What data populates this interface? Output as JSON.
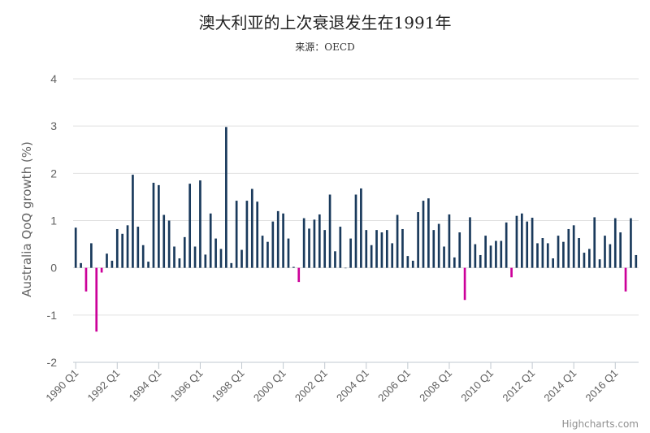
{
  "chart_data": {
    "type": "bar",
    "title": "澳大利亚的上次衰退发生在1991年",
    "subtitle": "来源：OECD",
    "ylabel": "Australia QoQ growth (%)",
    "xlabel": "",
    "ylim": [
      -2,
      4
    ],
    "yticks": [
      -2,
      -1,
      0,
      1,
      2,
      3,
      4
    ],
    "xtick_labels": [
      "1990 Q1",
      "1992 Q1",
      "1994 Q1",
      "1996 Q1",
      "1998 Q1",
      "2000 Q1",
      "2002 Q1",
      "2004 Q1",
      "2006 Q1",
      "2008 Q1",
      "2010 Q1",
      "2012 Q1",
      "2014 Q1",
      "2016 Q1"
    ],
    "start_year": 1990,
    "positive_color": "#1a3a5c",
    "negative_color": "#cc0099",
    "grid": true,
    "values": [
      0.85,
      0.1,
      -0.5,
      0.52,
      -1.35,
      -0.1,
      0.3,
      0.15,
      0.82,
      0.72,
      0.9,
      1.97,
      0.87,
      0.48,
      0.13,
      1.8,
      1.75,
      1.12,
      1.0,
      0.45,
      0.2,
      0.65,
      1.78,
      0.45,
      1.85,
      0.28,
      1.15,
      0.62,
      0.4,
      2.98,
      0.1,
      1.42,
      0.38,
      1.42,
      1.67,
      1.4,
      0.68,
      0.55,
      0.98,
      1.2,
      1.15,
      0.62,
      0.02,
      -0.3,
      1.05,
      0.83,
      1.02,
      1.13,
      0.8,
      1.55,
      0.35,
      0.87,
      0.0,
      0.62,
      1.55,
      1.68,
      0.8,
      0.48,
      0.8,
      0.75,
      0.8,
      0.52,
      1.12,
      0.82,
      0.25,
      0.15,
      1.18,
      1.42,
      1.47,
      0.8,
      0.93,
      0.45,
      1.13,
      0.22,
      0.75,
      -0.68,
      1.07,
      0.5,
      0.27,
      0.68,
      0.47,
      0.57,
      0.57,
      0.96,
      -0.2,
      1.1,
      1.15,
      0.98,
      1.06,
      0.52,
      0.63,
      0.52,
      0.2,
      0.68,
      0.55,
      0.82,
      0.9,
      0.63,
      0.32,
      0.4,
      1.07,
      0.18,
      0.68,
      0.5,
      1.05,
      0.75,
      -0.5,
      1.05,
      0.27
    ],
    "credits": "Highcharts.com"
  }
}
